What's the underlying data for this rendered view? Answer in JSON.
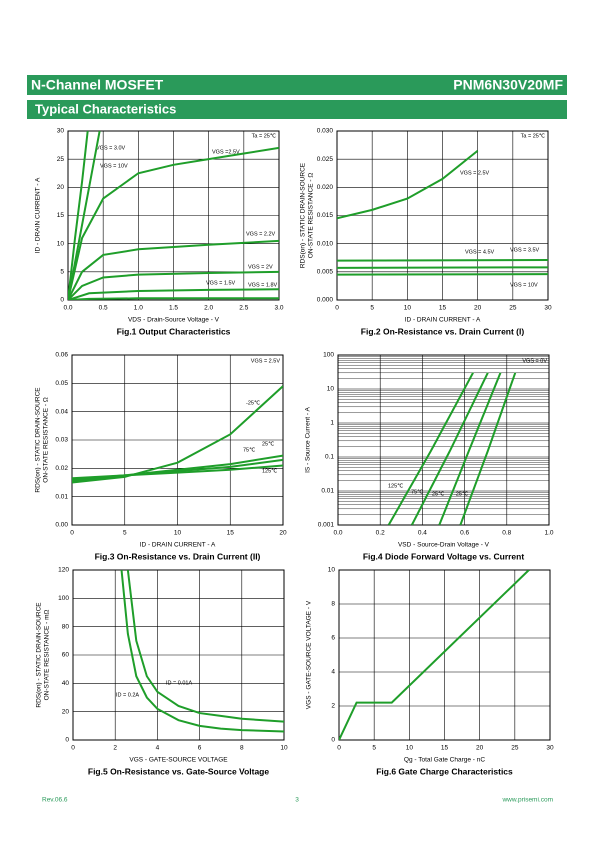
{
  "header": {
    "title": "N-Channel MOSFET",
    "part": "PNM6N30V20MF",
    "section": "Typical Characteristics"
  },
  "footer": {
    "rev": "Rev.06.6",
    "page": "3",
    "site": "www.prisemi.com"
  },
  "chart_data": [
    {
      "type": "line",
      "caption": "Fig.1 Output Characteristics",
      "xlabel": "VDS - Drain-Source Voltage - V",
      "ylabel": [
        "ID - DRAIN CURRENT - A"
      ],
      "xlim": [
        0,
        3
      ],
      "ylim": [
        0,
        30
      ],
      "xticks": [
        {
          "value": 0,
          "label": "0.0"
        },
        0.5,
        {
          "value": 1,
          "label": "1.0"
        },
        1.5,
        {
          "value": 2,
          "label": "2.0"
        },
        2.5,
        {
          "value": 3,
          "label": "3.0"
        }
      ],
      "yticks": [
        0,
        5,
        10,
        15,
        20,
        25,
        30
      ],
      "grid": true,
      "annotations": [
        "Ta = 25℃"
      ],
      "series": [
        {
          "name": "VGS = 3.0V",
          "color": "#1f9e2a",
          "x": [
            0,
            0.1,
            0.2,
            0.28
          ],
          "values": [
            0,
            11,
            21,
            30
          ]
        },
        {
          "name": "VGS = 10V",
          "color": "#1f9e2a",
          "x": [
            0,
            0.15,
            0.3,
            0.45
          ],
          "values": [
            0,
            10,
            20,
            30
          ]
        },
        {
          "name": "VGS =2.5V",
          "color": "#1f9e2a",
          "x": [
            0,
            0.2,
            0.5,
            1,
            1.5,
            2,
            2.5,
            3
          ],
          "values": [
            0,
            11,
            18,
            22.5,
            24,
            25,
            26,
            27
          ]
        },
        {
          "name": "VGS = 2.2V",
          "color": "#1f9e2a",
          "x": [
            0,
            0.2,
            0.5,
            1,
            2,
            3
          ],
          "values": [
            0,
            5,
            8,
            9,
            9.8,
            10.5
          ]
        },
        {
          "name": "VGS = 2V",
          "color": "#1f9e2a",
          "x": [
            0,
            0.2,
            0.5,
            1,
            2,
            3
          ],
          "values": [
            0,
            2.5,
            4,
            4.5,
            4.8,
            5
          ]
        },
        {
          "name": "VGS = 1.5V",
          "color": "#1f9e2a",
          "x": [
            0,
            0.3,
            1,
            2,
            3
          ],
          "values": [
            0,
            0.2,
            0.3,
            0.3,
            0.3
          ]
        },
        {
          "name": "VGS = 1.8V",
          "color": "#1f9e2a",
          "x": [
            0,
            0.3,
            1,
            2,
            3
          ],
          "values": [
            0,
            1.2,
            1.6,
            1.8,
            1.9
          ]
        }
      ]
    },
    {
      "type": "line",
      "caption": "Fig.2 On-Resistance vs. Drain Current (I)",
      "xlabel": "ID - DRAIN CURRENT - A",
      "ylabel": [
        "RDS(on) - STATIC DRAIN-SOURCE",
        "ON-STATE RESISTANCE - Ω"
      ],
      "xlim": [
        0,
        30
      ],
      "ylim": [
        0,
        0.03
      ],
      "xticks": [
        0,
        5,
        10,
        15,
        20,
        25,
        30
      ],
      "yticks": [
        {
          "value": 0,
          "label": "0.000"
        },
        0.005,
        {
          "value": 0.01,
          "label": "0.010"
        },
        0.015,
        {
          "value": 0.02,
          "label": "0.020"
        },
        0.025,
        {
          "value": 0.03,
          "label": "0.030"
        }
      ],
      "grid": true,
      "annotations": [
        "Ta = 25℃"
      ],
      "series": [
        {
          "name": "VGS = 2.5V",
          "color": "#1f9e2a",
          "x": [
            0,
            5,
            10,
            15,
            20
          ],
          "values": [
            0.0145,
            0.016,
            0.018,
            0.0215,
            0.0265
          ]
        },
        {
          "name": "VGS = 3.5V",
          "color": "#1f9e2a",
          "x": [
            0,
            30
          ],
          "values": [
            0.007,
            0.0071
          ]
        },
        {
          "name": "VGS = 4.5V",
          "color": "#1f9e2a",
          "x": [
            0,
            30
          ],
          "values": [
            0.0057,
            0.0058
          ]
        },
        {
          "name": "VGS = 10V",
          "color": "#1f9e2a",
          "x": [
            0,
            30
          ],
          "values": [
            0.0045,
            0.0046
          ]
        }
      ]
    },
    {
      "type": "line",
      "caption": "Fig.3 On-Resistance vs. Drain Current (II)",
      "xlabel": "ID - DRAIN CURRENT - A",
      "ylabel": [
        "RDS(on) - STATIC DRAIN-SOURCE",
        "ON-STATE RESISTANCE - Ω"
      ],
      "xlim": [
        0,
        20
      ],
      "ylim": [
        0,
        0.06
      ],
      "xticks": [
        0,
        5,
        10,
        15,
        20
      ],
      "yticks": [
        {
          "value": 0,
          "label": "0.00"
        },
        0.01,
        0.02,
        0.03,
        0.04,
        0.05,
        0.06
      ],
      "grid": true,
      "annotations": [
        "VGS = 2.5V"
      ],
      "series": [
        {
          "name": "-25℃",
          "color": "#1f9e2a",
          "x": [
            0,
            5,
            10,
            15,
            20
          ],
          "values": [
            0.015,
            0.017,
            0.022,
            0.032,
            0.049
          ]
        },
        {
          "name": "25℃",
          "color": "#1f9e2a",
          "x": [
            0,
            5,
            10,
            15,
            20
          ],
          "values": [
            0.0155,
            0.0175,
            0.0195,
            0.0215,
            0.0245
          ]
        },
        {
          "name": "75℃",
          "color": "#1f9e2a",
          "x": [
            0,
            5,
            10,
            15,
            20
          ],
          "values": [
            0.016,
            0.0175,
            0.019,
            0.0205,
            0.023
          ]
        },
        {
          "name": "125℃",
          "color": "#1f9e2a",
          "x": [
            0,
            5,
            10,
            15,
            20
          ],
          "values": [
            0.0165,
            0.0175,
            0.0185,
            0.0195,
            0.021
          ]
        }
      ]
    },
    {
      "type": "line",
      "caption": "Fig.4 Diode Forward Voltage vs. Current",
      "xlabel": "VSD - Source-Drain Voltage - V",
      "ylabel": [
        "IS - Source Current - A"
      ],
      "xlim": [
        0,
        1
      ],
      "ylim": [
        0.001,
        100
      ],
      "yscale": "log",
      "xticks": [
        {
          "value": 0,
          "label": "0.0"
        },
        0.2,
        0.4,
        0.6,
        0.8,
        {
          "value": 1,
          "label": "1.0"
        }
      ],
      "yticks": [
        0.001,
        0.01,
        0.1,
        1,
        10,
        100
      ],
      "grid": true,
      "annotations": [
        "VGS = 0V"
      ],
      "series": [
        {
          "name": "125℃",
          "color": "#1f9e2a",
          "x": [
            0.24,
            0.44,
            0.64
          ],
          "values": [
            0.001,
            0.15,
            30
          ]
        },
        {
          "name": "75℃",
          "color": "#1f9e2a",
          "x": [
            0.35,
            0.53,
            0.71
          ],
          "values": [
            0.001,
            0.15,
            30
          ]
        },
        {
          "name": "25℃",
          "color": "#1f9e2a",
          "x": [
            0.48,
            0.62,
            0.77
          ],
          "values": [
            0.001,
            0.15,
            30
          ]
        },
        {
          "name": "-25℃",
          "color": "#1f9e2a",
          "x": [
            0.58,
            0.71,
            0.84
          ],
          "values": [
            0.001,
            0.15,
            30
          ]
        }
      ]
    },
    {
      "type": "line",
      "caption": "Fig.5 On-Resistance vs. Gate-Source Voltage",
      "xlabel": "VGS - GATE-SOURCE VOLTAGE",
      "ylabel": [
        "RDS(on) - STATIC DRAIN-SOURCE",
        "ON-STATE RESISTANCE - mΩ"
      ],
      "xlim": [
        0,
        10
      ],
      "ylim": [
        0,
        120
      ],
      "xticks": [
        0,
        2,
        4,
        6,
        8,
        10
      ],
      "yticks": [
        0,
        20,
        40,
        60,
        80,
        100,
        120
      ],
      "grid": true,
      "annotations": [],
      "series": [
        {
          "name": "ID = 0.2A",
          "color": "#1f9e2a",
          "x": [
            2.3,
            2.6,
            3,
            3.5,
            4,
            5,
            6,
            7,
            8,
            10
          ],
          "values": [
            120,
            75,
            45,
            30,
            22,
            14,
            10,
            8,
            7,
            6
          ]
        },
        {
          "name": "ID = 0.01A",
          "color": "#1f9e2a",
          "x": [
            2.6,
            3,
            3.5,
            4,
            5,
            6,
            7,
            8,
            10
          ],
          "values": [
            120,
            70,
            45,
            34,
            24,
            19,
            17,
            15,
            13
          ]
        }
      ]
    },
    {
      "type": "line",
      "caption": "Fig.6 Gate Charge Characteristics",
      "xlabel": "Qg - Total Gate Charge - nC",
      "ylabel": [
        "VGS - GATE-SOURCE VOLTAGE - V"
      ],
      "xlim": [
        0,
        30
      ],
      "ylim": [
        0,
        10
      ],
      "xticks": [
        0,
        5,
        10,
        15,
        20,
        25,
        30
      ],
      "yticks": [
        0,
        2,
        4,
        6,
        8,
        10
      ],
      "grid": true,
      "annotations": [],
      "series": [
        {
          "name": "",
          "color": "#1f9e2a",
          "x": [
            0,
            2.5,
            7.5,
            27
          ],
          "values": [
            0,
            2.2,
            2.2,
            10
          ]
        }
      ]
    }
  ]
}
